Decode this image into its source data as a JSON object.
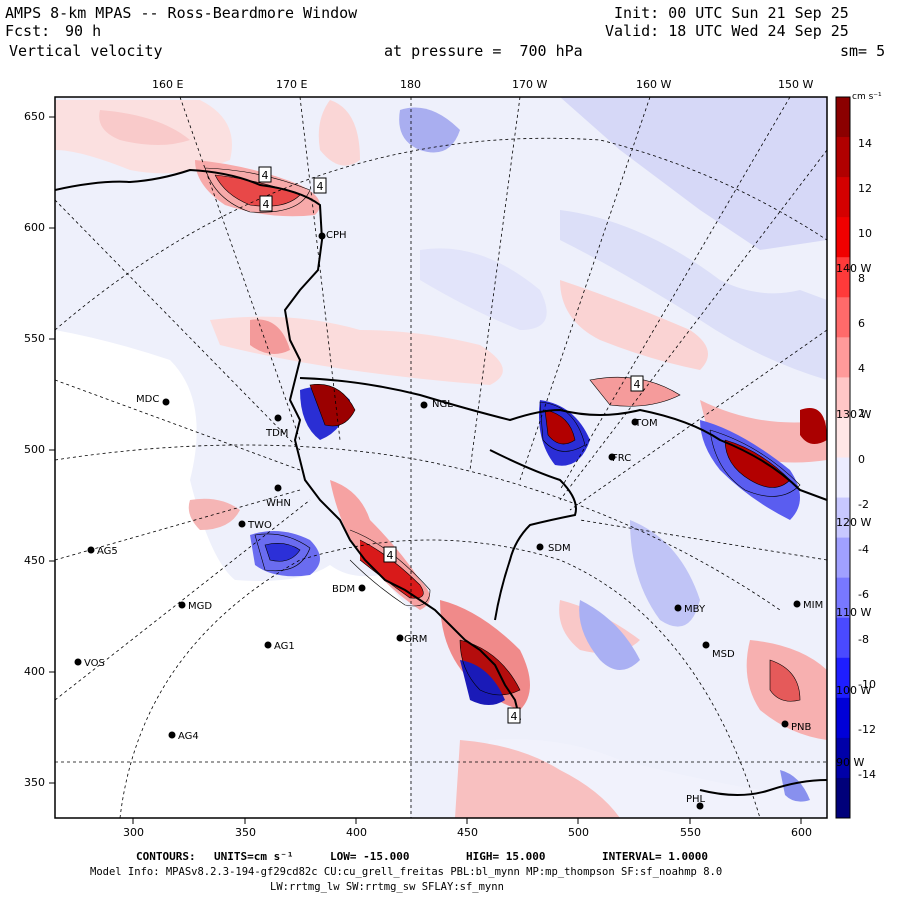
{
  "header": {
    "title": "AMPS 8-km MPAS -- Ross-Beardmore Window",
    "fcst_label": "Fcst:",
    "fcst_value": "90 h",
    "field": "Vertical velocity",
    "init": "Init: 00 UTC Sun 21 Sep 25",
    "valid": "Valid: 18 UTC Wed 24 Sep 25",
    "pressure": "at pressure =  700 hPa",
    "smooth": "sm= 5"
  },
  "axes": {
    "top_longitudes": [
      "160 E",
      "170 E",
      "180",
      "170 W",
      "160 W",
      "150 W"
    ],
    "left_ticks": [
      "650",
      "600",
      "550",
      "500",
      "450",
      "400",
      "350"
    ],
    "bottom_ticks": [
      "300",
      "350",
      "400",
      "450",
      "500",
      "550",
      "600"
    ]
  },
  "colorbar": {
    "units": "cm s⁻¹",
    "labels": [
      "14",
      "12",
      "10",
      "8",
      "6",
      "4",
      "2",
      "0",
      "-2",
      "-4",
      "-6",
      "-8",
      "-10",
      "-12",
      "-14"
    ],
    "colors": [
      "#8b0000",
      "#b00000",
      "#d40000",
      "#f00000",
      "#ff3a3a",
      "#ff6a6a",
      "#ff9a9a",
      "#ffc6c6",
      "#ffe6e6",
      "#ececff",
      "#c8c8ff",
      "#a0a0ff",
      "#7878ff",
      "#4a4aff",
      "#1e1eff",
      "#0000d8",
      "#0000a8",
      "#00007a"
    ]
  },
  "overlay_labels": [
    "140 W",
    "130 W",
    "120 W",
    "110 W",
    "100 W",
    "90 W"
  ],
  "stations": [
    {
      "name": "CPH"
    },
    {
      "name": "MDC"
    },
    {
      "name": "NGL"
    },
    {
      "name": "TDM"
    },
    {
      "name": "WHN"
    },
    {
      "name": "TWO"
    },
    {
      "name": "AG5"
    },
    {
      "name": "SDM"
    },
    {
      "name": "BDM"
    },
    {
      "name": "MGD"
    },
    {
      "name": "AG1"
    },
    {
      "name": "GRM"
    },
    {
      "name": "VOS"
    },
    {
      "name": "AG4"
    },
    {
      "name": "PHL"
    },
    {
      "name": "MBY"
    },
    {
      "name": "MSD"
    },
    {
      "name": "MIM"
    },
    {
      "name": "PNB"
    },
    {
      "name": "FRC"
    },
    {
      "name": "TOM"
    }
  ],
  "highs": [
    "4",
    "4",
    "4",
    "4",
    "4",
    "4"
  ],
  "footer": {
    "contours_label": "CONTOURS:",
    "units": "UNITS=cm s⁻¹",
    "low": "LOW= -15.000",
    "high": "HIGH= 15.000",
    "interval": "INTERVAL= 1.0000",
    "model_info": "Model Info: MPASv8.2.3-194-gf29cd82c CU:cu_grell_freitas PBL:bl_mynn MP:mp_thompson SF:sf_noahmp 8.0",
    "physics": "LW:rrtmg_lw SW:rrtmg_sw SFLAY:sf_mynn"
  }
}
